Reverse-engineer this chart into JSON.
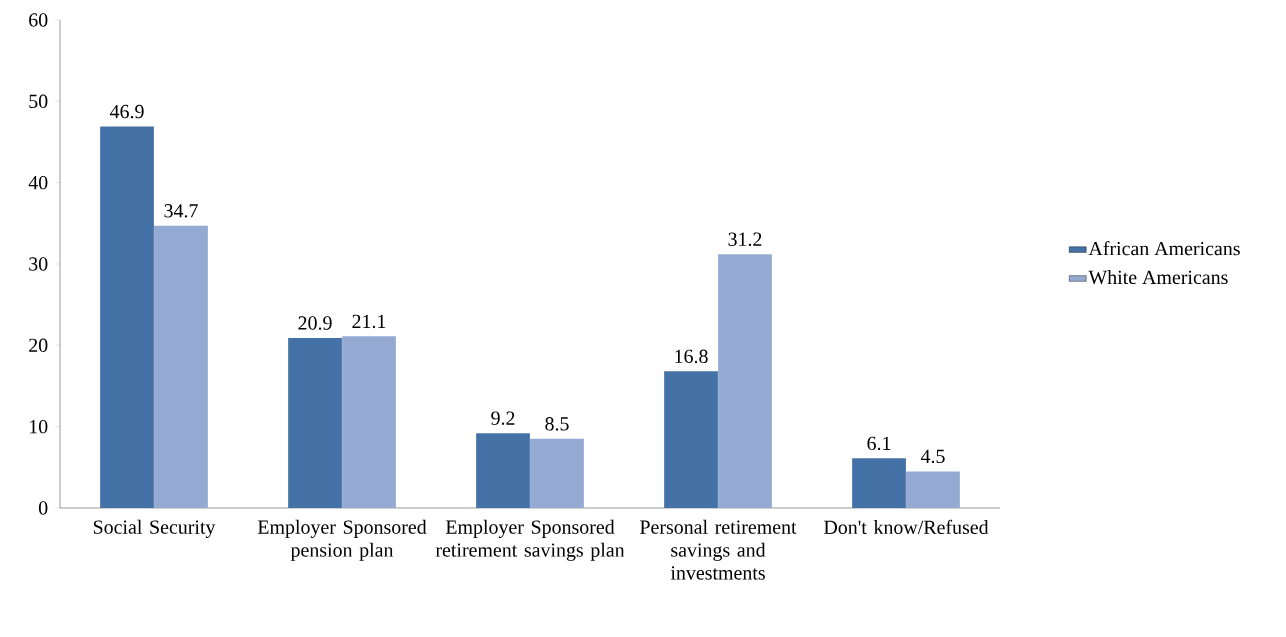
{
  "chart_data": {
    "type": "bar",
    "categories": [
      "Social Security",
      "Employer Sponsored pension plan",
      "Employer Sponsored retirement savings plan",
      "Personal retirement savings and investments",
      "Don't know/Refused"
    ],
    "series": [
      {
        "name": "African Americans",
        "color": "#4472a7",
        "values": [
          46.9,
          20.9,
          9.2,
          16.8,
          6.1
        ]
      },
      {
        "name": "White Americans",
        "color": "#95aad2",
        "values": [
          34.7,
          21.1,
          8.5,
          31.2,
          4.5
        ]
      }
    ],
    "ylim": [
      0,
      60
    ],
    "yticks": [
      0,
      10,
      20,
      30,
      40,
      50,
      60
    ],
    "data_labels": true,
    "legend": "right",
    "grid": false
  }
}
